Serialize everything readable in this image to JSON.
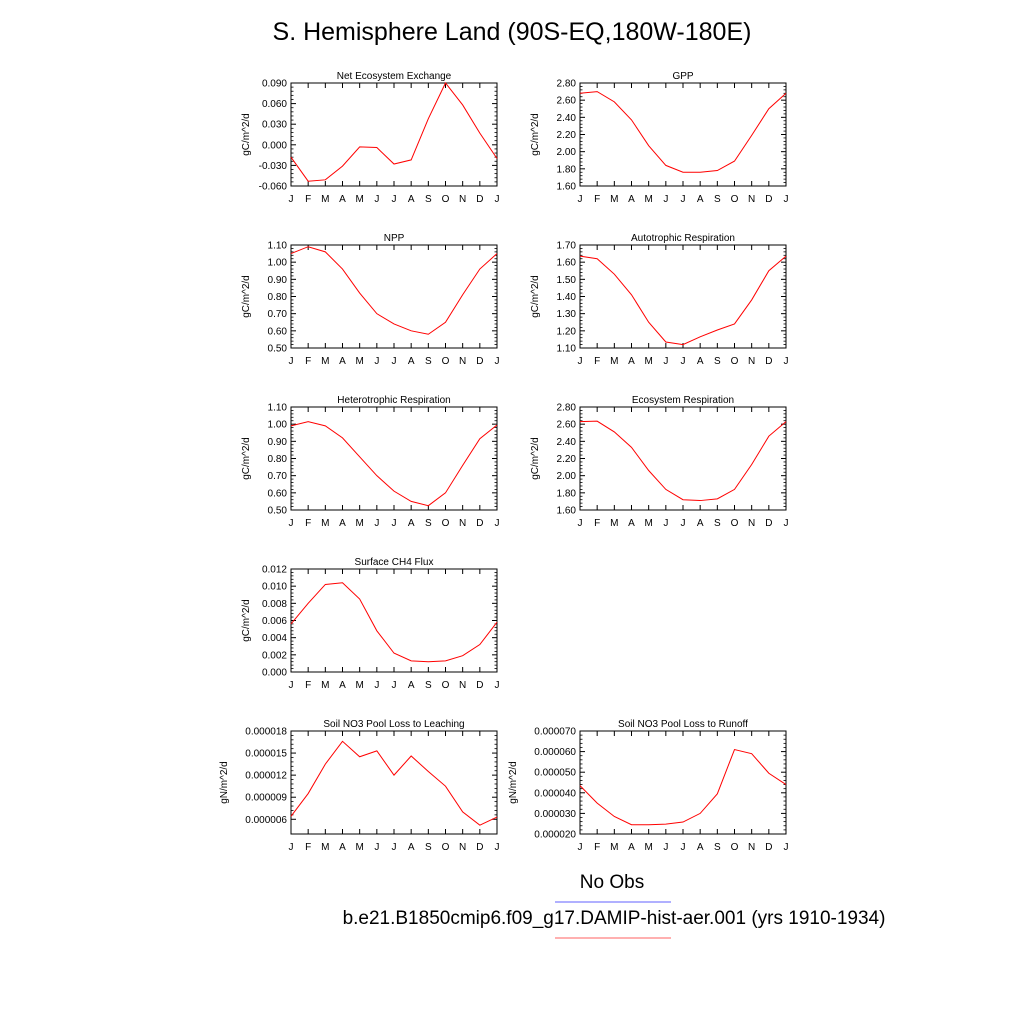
{
  "title": "S. Hemisphere Land (90S-EQ,180W-180E)",
  "legend": {
    "obs_label": "No Obs",
    "model_label": "b.e21.B1850cmip6.f09_g17.DAMIP-hist-aer.001 (yrs 1910-1934)",
    "obs_color": "#8080ff",
    "model_color": "#ff8080"
  },
  "line_color": "#ff0000",
  "chart_data": [
    {
      "type": "line",
      "title": "Net Ecosystem Exchange",
      "ylabel": "gC/m^2/d",
      "categories": [
        "J",
        "F",
        "M",
        "A",
        "M",
        "J",
        "J",
        "A",
        "S",
        "O",
        "N",
        "D",
        "J"
      ],
      "yticks": [
        "-0.060",
        "-0.030",
        "0.000",
        "0.030",
        "0.060",
        "0.090"
      ],
      "ylim": [
        -0.06,
        0.09
      ],
      "values": [
        -0.018,
        -0.053,
        -0.051,
        -0.031,
        -0.003,
        -0.004,
        -0.028,
        -0.022,
        0.038,
        0.09,
        0.058,
        0.017,
        -0.02
      ]
    },
    {
      "type": "line",
      "title": "GPP",
      "ylabel": "gC/m^2/d",
      "categories": [
        "J",
        "F",
        "M",
        "A",
        "M",
        "J",
        "J",
        "A",
        "S",
        "O",
        "N",
        "D",
        "J"
      ],
      "yticks": [
        "1.60",
        "1.80",
        "2.00",
        "2.20",
        "2.40",
        "2.60",
        "2.80"
      ],
      "ylim": [
        1.6,
        2.8
      ],
      "values": [
        2.68,
        2.7,
        2.58,
        2.37,
        2.07,
        1.84,
        1.76,
        1.76,
        1.78,
        1.89,
        2.19,
        2.5,
        2.68
      ]
    },
    {
      "type": "line",
      "title": "NPP",
      "ylabel": "gC/m^2/d",
      "categories": [
        "J",
        "F",
        "M",
        "A",
        "M",
        "J",
        "J",
        "A",
        "S",
        "O",
        "N",
        "D",
        "J"
      ],
      "yticks": [
        "0.50",
        "0.60",
        "0.70",
        "0.80",
        "0.90",
        "1.00",
        "1.10"
      ],
      "ylim": [
        0.5,
        1.1
      ],
      "values": [
        1.05,
        1.09,
        1.06,
        0.96,
        0.82,
        0.7,
        0.64,
        0.6,
        0.58,
        0.65,
        0.81,
        0.96,
        1.05
      ]
    },
    {
      "type": "line",
      "title": "Autotrophic Respiration",
      "ylabel": "gC/m^2/d",
      "categories": [
        "J",
        "F",
        "M",
        "A",
        "M",
        "J",
        "J",
        "A",
        "S",
        "O",
        "N",
        "D",
        "J"
      ],
      "yticks": [
        "1.10",
        "1.20",
        "1.30",
        "1.40",
        "1.50",
        "1.60",
        "1.70"
      ],
      "ylim": [
        1.1,
        1.7
      ],
      "values": [
        1.635,
        1.62,
        1.53,
        1.41,
        1.25,
        1.135,
        1.12,
        1.165,
        1.205,
        1.24,
        1.38,
        1.55,
        1.635
      ]
    },
    {
      "type": "line",
      "title": "Heterotrophic Respiration",
      "ylabel": "gC/m^2/d",
      "categories": [
        "J",
        "F",
        "M",
        "A",
        "M",
        "J",
        "J",
        "A",
        "S",
        "O",
        "N",
        "D",
        "J"
      ],
      "yticks": [
        "0.50",
        "0.60",
        "0.70",
        "0.80",
        "0.90",
        "1.00",
        "1.10"
      ],
      "ylim": [
        0.5,
        1.1
      ],
      "values": [
        0.99,
        1.015,
        0.99,
        0.92,
        0.81,
        0.7,
        0.61,
        0.55,
        0.525,
        0.6,
        0.76,
        0.915,
        0.995
      ]
    },
    {
      "type": "line",
      "title": "Ecosystem Respiration",
      "ylabel": "gC/m^2/d",
      "categories": [
        "J",
        "F",
        "M",
        "A",
        "M",
        "J",
        "J",
        "A",
        "S",
        "O",
        "N",
        "D",
        "J"
      ],
      "yticks": [
        "1.60",
        "1.80",
        "2.00",
        "2.20",
        "2.40",
        "2.60",
        "2.80"
      ],
      "ylim": [
        1.6,
        2.8
      ],
      "values": [
        2.63,
        2.635,
        2.51,
        2.33,
        2.06,
        1.84,
        1.72,
        1.71,
        1.73,
        1.84,
        2.13,
        2.46,
        2.63
      ]
    },
    {
      "type": "line",
      "title": "Surface CH4 Flux",
      "ylabel": "gC/m^2/d",
      "categories": [
        "J",
        "F",
        "M",
        "A",
        "M",
        "J",
        "J",
        "A",
        "S",
        "O",
        "N",
        "D",
        "J"
      ],
      "yticks": [
        "0.000",
        "0.002",
        "0.004",
        "0.006",
        "0.008",
        "0.010",
        "0.012"
      ],
      "ylim": [
        0.0,
        0.012
      ],
      "values": [
        0.0056,
        0.008,
        0.0102,
        0.0104,
        0.0085,
        0.0048,
        0.0022,
        0.0013,
        0.0012,
        0.0013,
        0.0019,
        0.0032,
        0.0058
      ]
    },
    {
      "type": "line",
      "title": "Soil NO3 Pool Loss to Leaching",
      "ylabel": "gN/m^2/d",
      "categories": [
        "J",
        "F",
        "M",
        "A",
        "M",
        "J",
        "J",
        "A",
        "S",
        "O",
        "N",
        "D",
        "J"
      ],
      "yticks": [
        "0.000006",
        "0.000009",
        "0.000012",
        "0.000015",
        "0.000018"
      ],
      "ylim": [
        4e-06,
        1.8e-05
      ],
      "values": [
        6.4e-06,
        9.5e-06,
        1.35e-05,
        1.66e-05,
        1.45e-05,
        1.53e-05,
        1.2e-05,
        1.46e-05,
        1.25e-05,
        1.05e-05,
        7e-06,
        5.2e-06,
        6.3e-06
      ]
    },
    {
      "type": "line",
      "title": "Soil NO3 Pool Loss to Runoff",
      "ylabel": "gN/m^2/d",
      "categories": [
        "J",
        "F",
        "M",
        "A",
        "M",
        "J",
        "J",
        "A",
        "S",
        "O",
        "N",
        "D",
        "J"
      ],
      "yticks": [
        "0.000020",
        "0.000030",
        "0.000040",
        "0.000050",
        "0.000060",
        "0.000070"
      ],
      "ylim": [
        2e-05,
        7e-05
      ],
      "values": [
        4.35e-05,
        3.5e-05,
        2.85e-05,
        2.45e-05,
        2.45e-05,
        2.48e-05,
        2.58e-05,
        3e-05,
        3.95e-05,
        6.1e-05,
        5.9e-05,
        4.95e-05,
        4.4e-05
      ]
    }
  ]
}
